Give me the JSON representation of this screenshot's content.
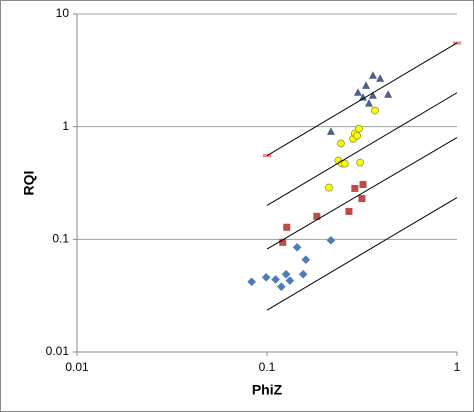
{
  "chart_data": {
    "type": "scatter",
    "x_label": "PhiZ",
    "y_label": "RQI",
    "log_x": true,
    "log_y": true,
    "grid": "y",
    "xlim": [
      0.01,
      1
    ],
    "xticks": [
      0.01,
      0.1,
      1
    ],
    "ylim": [
      0.01,
      10
    ],
    "yticks": [
      0.01,
      0.1,
      1,
      10
    ],
    "series": [
      {
        "marker": "diamond",
        "color": "#4a7ebb",
        "x": [
          0.083,
          0.099,
          0.111,
          0.119,
          0.126,
          0.132,
          0.144,
          0.155,
          0.16,
          0.217
        ],
        "values": [
          0.042,
          0.046,
          0.044,
          0.038,
          0.049,
          0.043,
          0.085,
          0.049,
          0.066,
          0.098
        ]
      },
      {
        "marker": "square",
        "color": "#be4b48",
        "x": [
          0.121,
          0.127,
          0.183,
          0.27,
          0.29,
          0.316,
          0.32
        ],
        "values": [
          0.094,
          0.128,
          0.16,
          0.177,
          0.283,
          0.23,
          0.307
        ]
      },
      {
        "marker": "circle",
        "color": "#ffff00",
        "x": [
          0.212,
          0.237,
          0.245,
          0.248,
          0.257,
          0.284,
          0.29,
          0.298,
          0.305,
          0.309,
          0.37
        ],
        "values": [
          0.288,
          0.5,
          0.71,
          0.47,
          0.47,
          0.78,
          0.87,
          0.83,
          0.96,
          0.48,
          1.39
        ]
      },
      {
        "marker": "triangle",
        "color": "#4d5f8a",
        "x": [
          0.217,
          0.301,
          0.32,
          0.332,
          0.344,
          0.361,
          0.361,
          0.394,
          0.434
        ],
        "values": [
          0.9,
          2.0,
          1.81,
          2.3,
          1.6,
          1.88,
          2.83,
          2.66,
          1.92
        ]
      },
      {
        "marker": "dash",
        "color": "#ff8080",
        "x": [
          0.1,
          1
        ],
        "values": [
          0.553,
          5.53
        ]
      },
      {
        "marker": "line",
        "color": "#000000",
        "x": [
          0.1,
          1
        ],
        "values": [
          0.553,
          5.53
        ]
      },
      {
        "marker": "line",
        "color": "#000000",
        "x": [
          0.1,
          1
        ],
        "values": [
          0.2,
          2.0
        ]
      },
      {
        "marker": "line",
        "color": "#000000",
        "x": [
          0.1,
          1
        ],
        "values": [
          0.082,
          0.8
        ]
      },
      {
        "marker": "line",
        "color": "#000000",
        "x": [
          0.1,
          1
        ],
        "values": [
          0.0235,
          0.235
        ]
      }
    ]
  }
}
